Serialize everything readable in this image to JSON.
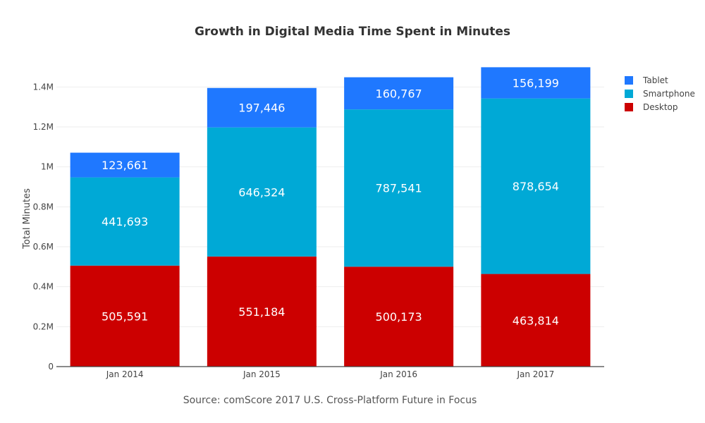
{
  "chart_data": {
    "type": "bar",
    "stacked": true,
    "title": "Growth in Digital Media Time Spent in Minutes",
    "ylabel": "Total Minutes",
    "xlabel": "",
    "source": "Source: comScore 2017 U.S. Cross-Platform Future in Focus",
    "categories": [
      "Jan 2014",
      "Jan 2015",
      "Jan 2016",
      "Jan 2017"
    ],
    "ylim": [
      0,
      1.5
    ],
    "yticks": [
      0,
      0.2,
      0.4,
      0.6,
      0.8,
      1,
      1.2,
      1.4
    ],
    "ytick_labels": [
      "0",
      "0.2M",
      "0.4M",
      "0.6M",
      "0.8M",
      "1M",
      "1.2M",
      "1.4M"
    ],
    "grid": true,
    "legend_position": "top-right",
    "series": [
      {
        "name": "Desktop",
        "color": "#cc0000",
        "values": [
          0.505591,
          0.551184,
          0.500173,
          0.463814
        ],
        "labels": [
          "505,591",
          "551,184",
          "500,173",
          "463,814"
        ]
      },
      {
        "name": "Smartphone",
        "color": "#00a9d6",
        "values": [
          0.441693,
          0.646324,
          0.787541,
          0.878654
        ],
        "labels": [
          "441,693",
          "646,324",
          "787,541",
          "878,654"
        ]
      },
      {
        "name": "Tablet",
        "color": "#1f78ff",
        "values": [
          0.123661,
          0.197446,
          0.160767,
          0.156199
        ],
        "labels": [
          "123,661",
          "197,446",
          "160,767",
          "156,199"
        ]
      }
    ],
    "legend_order": [
      "Tablet",
      "Smartphone",
      "Desktop"
    ]
  }
}
